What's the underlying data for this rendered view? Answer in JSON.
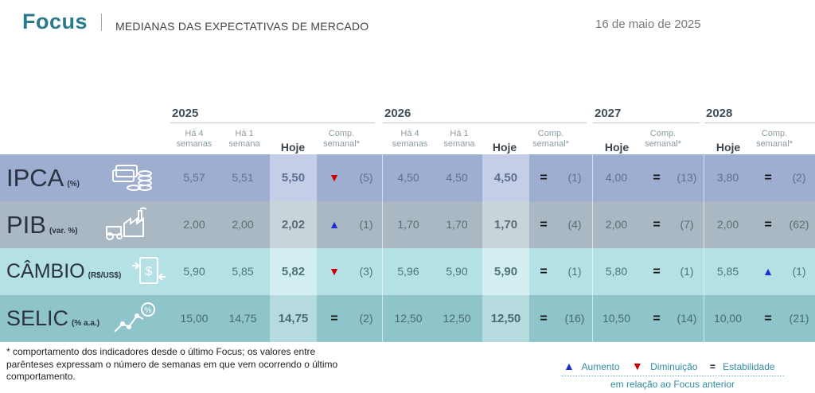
{
  "header": {
    "brand": "Focus",
    "subtitle": "MEDIANAS DAS EXPECTATIVAS DE MERCADO",
    "date": "16 de maio de 2025"
  },
  "years": [
    "2025",
    "2026",
    "2027",
    "2028"
  ],
  "col_heads": {
    "ha4": "Há 4 semanas",
    "ha1": "Há 1 semana",
    "hoje": "Hoje",
    "comp": "Comp. semanal*"
  },
  "rows": [
    {
      "name": "IPCA",
      "unit": "(%)",
      "icon": "coins-stack-icon",
      "y2025": {
        "ha4": "5,57",
        "ha1": "5,51",
        "hoje": "5,50",
        "trend": "down",
        "weeks": "(5)"
      },
      "y2026": {
        "ha4": "4,50",
        "ha1": "4,50",
        "hoje": "4,50",
        "trend": "equal",
        "weeks": "(1)"
      },
      "y2027": {
        "hoje": "4,00",
        "trend": "equal",
        "weeks": "(13)"
      },
      "y2028": {
        "hoje": "3,80",
        "trend": "equal",
        "weeks": "(2)"
      }
    },
    {
      "name": "PIB",
      "unit": "(var. %)",
      "icon": "factory-tractor-icon",
      "y2025": {
        "ha4": "2,00",
        "ha1": "2,00",
        "hoje": "2,02",
        "trend": "up",
        "weeks": "(1)"
      },
      "y2026": {
        "ha4": "1,70",
        "ha1": "1,70",
        "hoje": "1,70",
        "trend": "equal",
        "weeks": "(4)"
      },
      "y2027": {
        "hoje": "2,00",
        "trend": "equal",
        "weeks": "(7)"
      },
      "y2028": {
        "hoje": "2,00",
        "trend": "equal",
        "weeks": "(62)"
      }
    },
    {
      "name": "CÂMBIO",
      "unit": "(R$/US$)",
      "icon": "dollar-exchange-icon",
      "y2025": {
        "ha4": "5,90",
        "ha1": "5,85",
        "hoje": "5,82",
        "trend": "down",
        "weeks": "(3)"
      },
      "y2026": {
        "ha4": "5,96",
        "ha1": "5,90",
        "hoje": "5,90",
        "trend": "equal",
        "weeks": "(1)"
      },
      "y2027": {
        "hoje": "5,80",
        "trend": "equal",
        "weeks": "(1)"
      },
      "y2028": {
        "hoje": "5,85",
        "trend": "up",
        "weeks": "(1)"
      }
    },
    {
      "name": "SELIC",
      "unit": "(% a.a.)",
      "icon": "rate-chart-icon",
      "y2025": {
        "ha4": "15,00",
        "ha1": "14,75",
        "hoje": "14,75",
        "trend": "equal",
        "weeks": "(2)"
      },
      "y2026": {
        "ha4": "12,50",
        "ha1": "12,50",
        "hoje": "12,50",
        "trend": "equal",
        "weeks": "(16)"
      },
      "y2027": {
        "hoje": "10,50",
        "trend": "equal",
        "weeks": "(14)"
      },
      "y2028": {
        "hoje": "10,00",
        "trend": "equal",
        "weeks": "(21)"
      }
    }
  ],
  "footnote": "* comportamento dos indicadores desde o último Focus; os valores entre parênteses expressam o número de semanas em que vem ocorrendo o último comportamento.",
  "legend": {
    "up": "Aumento",
    "down": "Diminuição",
    "equal": "Estabilidade",
    "subtitle": "em relação ao Focus anterior"
  },
  "colors": {
    "brand": "#2b7a8c",
    "ipca_row": "#9eaed0",
    "pib_row": "#a9b8c2",
    "cambio_row": "#b4e1e6",
    "selic_row": "#8fc4ca",
    "up_arrow": "#1a2fd1",
    "down_arrow": "#d10000"
  }
}
